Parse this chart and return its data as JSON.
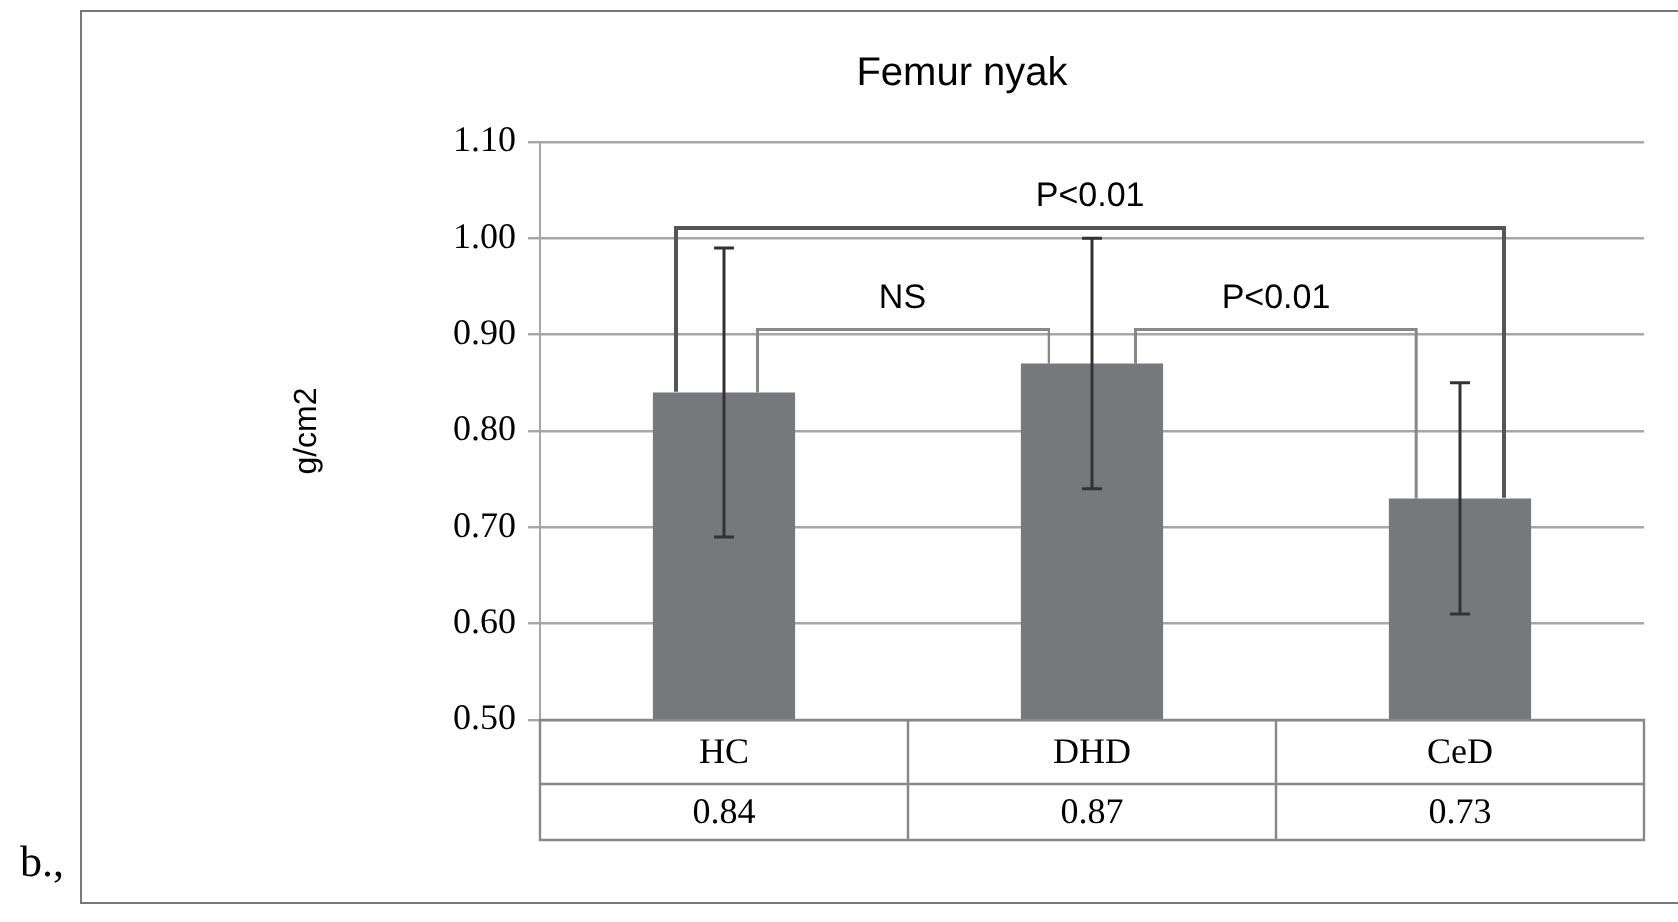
{
  "chart_data": {
    "type": "bar",
    "title": "Femur nyak",
    "ylabel": "g/cm2",
    "categories": [
      "HC",
      "DHD",
      "CeD"
    ],
    "values": [
      0.84,
      0.87,
      0.73
    ],
    "errors": [
      [
        0.69,
        0.99
      ],
      [
        0.74,
        1.0
      ],
      [
        0.61,
        0.85
      ]
    ],
    "color": "#77787b",
    "ylim": [
      0.5,
      1.1
    ],
    "yticks": [
      {
        "value": 0.5,
        "label": "0.50"
      },
      {
        "value": 0.6,
        "label": "0.60"
      },
      {
        "value": 0.7,
        "label": "0.70"
      },
      {
        "value": 0.8,
        "label": "0.80"
      },
      {
        "value": 0.9,
        "label": "0.90"
      },
      {
        "value": 1.0,
        "label": "1.00"
      },
      {
        "value": 1.1,
        "label": "1.10"
      }
    ],
    "grid": "y",
    "legend": false,
    "data_labels": true,
    "annotations": [
      "P<0.01",
      "NS",
      "P<0.01",
      "b.,"
    ]
  }
}
